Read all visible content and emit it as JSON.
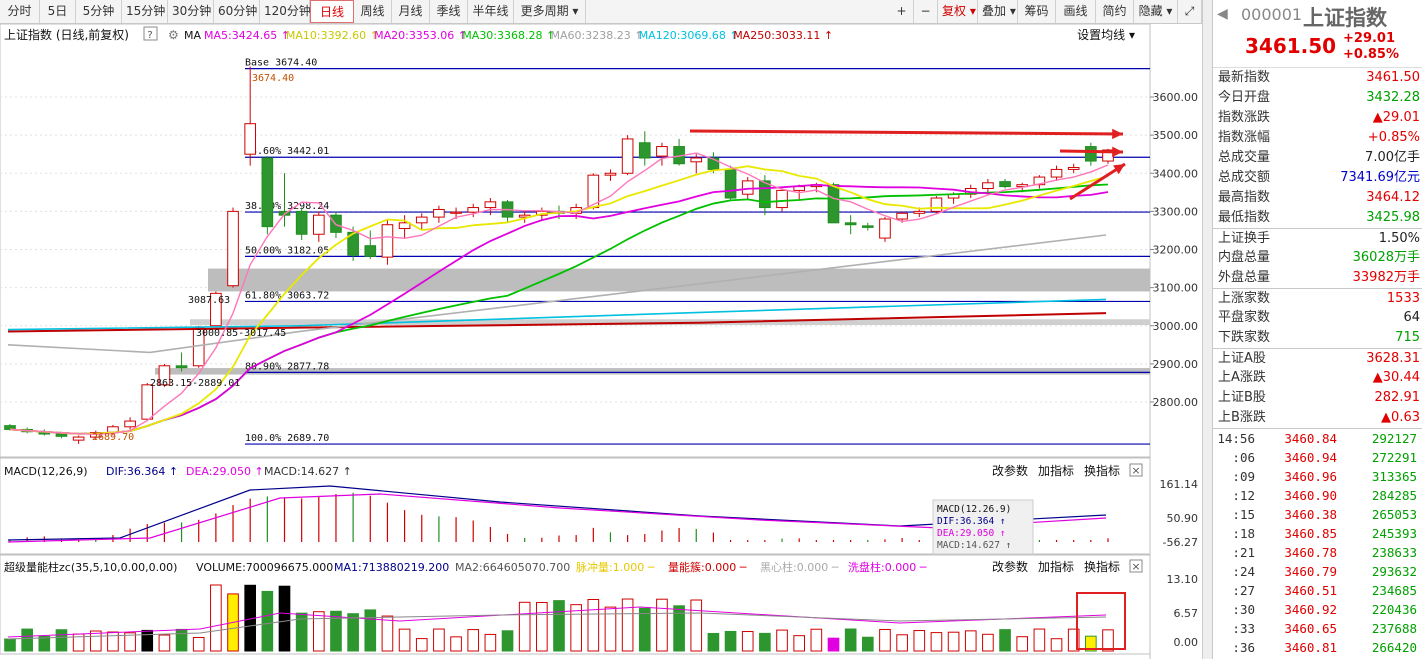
{
  "toolbar": {
    "periods": [
      "分时",
      "5日",
      "5分钟",
      "15分钟",
      "30分钟",
      "60分钟",
      "120分钟",
      "日线",
      "周线",
      "月线",
      "季线",
      "半年线",
      "更多周期 ▾"
    ],
    "active": "日线",
    "tools": [
      "+",
      "−",
      "复权 ▾",
      "叠加 ▾",
      "筹码",
      "画线",
      "简约",
      "隐藏 ▾"
    ]
  },
  "legend": {
    "title": "上证指数 (日线,前复权)",
    "ma": [
      {
        "label": "MA5:3424.65",
        "color": "#e000e0"
      },
      {
        "label": "MA10:3392.60",
        "color": "#e0e000"
      },
      {
        "label": "MA20:3353.06",
        "color": "#e000e0"
      },
      {
        "label": "MA30:3368.28",
        "color": "#00c000"
      },
      {
        "label": "MA60:3238.23",
        "color": "#a0a0a0"
      },
      {
        "label": "MA120:3069.68",
        "color": "#00c0e0"
      },
      {
        "label": "MA250:3033.11",
        "color": "#c00000"
      }
    ],
    "ma_label": "MA",
    "settings": "设置均线 ▾"
  },
  "price_axis": [
    "3600.00",
    "3500.00",
    "3400.00",
    "3300.00",
    "3200.00",
    "3100.00",
    "3000.00",
    "2900.00",
    "2800.00"
  ],
  "fib_labels": [
    "Base 3674.40",
    "23.60% 3442.01",
    "38.20% 3298.24",
    "50.00% 3182.05",
    "61.80% 3063.72",
    "80.90% 2877.78",
    "100.0% 2689.70"
  ],
  "price_notes": [
    "3674.40",
    "2689.70",
    "3087.63",
    "2863.15-2889.01",
    "3000.85-3017.45"
  ],
  "chart_data": {
    "type": "candlestick",
    "title": "上证指数 (日线,前复权)",
    "ylim": [
      2700,
      3710
    ],
    "candles": [
      [
        2738,
        2742,
        2725,
        2728
      ],
      [
        2728,
        2733,
        2718,
        2722
      ],
      [
        2722,
        2728,
        2712,
        2716
      ],
      [
        2716,
        2722,
        2705,
        2710
      ],
      [
        2700,
        2712,
        2690,
        2708
      ],
      [
        2708,
        2725,
        2702,
        2720
      ],
      [
        2720,
        2740,
        2712,
        2735
      ],
      [
        2735,
        2760,
        2728,
        2750
      ],
      [
        2755,
        2850,
        2750,
        2845
      ],
      [
        2845,
        2900,
        2840,
        2895
      ],
      [
        2895,
        2930,
        2880,
        2890
      ],
      [
        2895,
        3000,
        2890,
        2995
      ],
      [
        3000,
        3090,
        2995,
        3085
      ],
      [
        3105,
        3310,
        3100,
        3300
      ],
      [
        3450,
        3680,
        3420,
        3530
      ],
      [
        3440,
        3445,
        3240,
        3260
      ],
      [
        3300,
        3400,
        3260,
        3290
      ],
      [
        3300,
        3310,
        3225,
        3240
      ],
      [
        3240,
        3300,
        3220,
        3290
      ],
      [
        3290,
        3300,
        3230,
        3245
      ],
      [
        3245,
        3260,
        3170,
        3185
      ],
      [
        3210,
        3250,
        3175,
        3182
      ],
      [
        3180,
        3280,
        3160,
        3265
      ],
      [
        3255,
        3290,
        3230,
        3270
      ],
      [
        3270,
        3295,
        3250,
        3285
      ],
      [
        3285,
        3315,
        3270,
        3305
      ],
      [
        3295,
        3310,
        3280,
        3298
      ],
      [
        3298,
        3320,
        3285,
        3310
      ],
      [
        3310,
        3335,
        3290,
        3325
      ],
      [
        3325,
        3330,
        3270,
        3285
      ],
      [
        3285,
        3300,
        3270,
        3290
      ],
      [
        3290,
        3310,
        3275,
        3300
      ],
      [
        3300,
        3315,
        3280,
        3295
      ],
      [
        3295,
        3320,
        3280,
        3310
      ],
      [
        3310,
        3400,
        3305,
        3395
      ],
      [
        3395,
        3410,
        3380,
        3400
      ],
      [
        3400,
        3500,
        3395,
        3490
      ],
      [
        3480,
        3510,
        3420,
        3440
      ],
      [
        3445,
        3480,
        3420,
        3470
      ],
      [
        3470,
        3490,
        3420,
        3425
      ],
      [
        3430,
        3450,
        3400,
        3440
      ],
      [
        3440,
        3455,
        3400,
        3410
      ],
      [
        3410,
        3420,
        3330,
        3335
      ],
      [
        3345,
        3390,
        3330,
        3380
      ],
      [
        3380,
        3395,
        3290,
        3310
      ],
      [
        3310,
        3360,
        3300,
        3355
      ],
      [
        3355,
        3370,
        3330,
        3365
      ],
      [
        3365,
        3375,
        3350,
        3370
      ],
      [
        3370,
        3375,
        3270,
        3270
      ],
      [
        3270,
        3290,
        3240,
        3265
      ],
      [
        3262,
        3270,
        3250,
        3258
      ],
      [
        3230,
        3285,
        3220,
        3280
      ],
      [
        3280,
        3300,
        3270,
        3295
      ],
      [
        3295,
        3310,
        3285,
        3300
      ],
      [
        3300,
        3340,
        3295,
        3335
      ],
      [
        3335,
        3350,
        3320,
        3345
      ],
      [
        3345,
        3370,
        3335,
        3360
      ],
      [
        3360,
        3385,
        3345,
        3375
      ],
      [
        3378,
        3385,
        3360,
        3365
      ],
      [
        3365,
        3375,
        3350,
        3370
      ],
      [
        3370,
        3395,
        3360,
        3390
      ],
      [
        3390,
        3420,
        3380,
        3410
      ],
      [
        3410,
        3425,
        3400,
        3415
      ],
      [
        3470,
        3480,
        3420,
        3432
      ],
      [
        3432,
        3464,
        3425,
        3461
      ]
    ]
  },
  "macd": {
    "title": "MACD(12,26,9)",
    "dif": "DIF:36.364",
    "dea": "DEA:29.050",
    "macd": "MACD:14.627",
    "axis": [
      "161.14",
      "50.90",
      "-56.27"
    ],
    "box": [
      "MACD(12.26.9)",
      "DIF:36.364",
      "DEA:29.050",
      "MACD:14.627"
    ],
    "buttons": [
      "改参数",
      "加指标",
      "换指标"
    ]
  },
  "volume": {
    "title": "超级量能柱zc(35,5,10,0.00,0.00)",
    "vol": "VOLUME:700096675.000",
    "ma1": "MA1:713880219.200",
    "ma2": "MA2:664605070.700",
    "extra": [
      "脉冲量:1.000 ─",
      "量能簇:0.000 ─",
      "黑心柱:0.000 ─",
      "洗盘柱:0.000 ─"
    ],
    "axis": [
      "13.10",
      "6.57",
      "0.00"
    ],
    "buttons": [
      "改参数",
      "加指标",
      "换指标"
    ]
  },
  "quote": {
    "code": "000001",
    "name": "上证指数",
    "price": "3461.50",
    "change": "+29.01",
    "pct": "+0.85%",
    "rows1": [
      {
        "l": "最新指数",
        "v": "3461.50",
        "c": "red"
      },
      {
        "l": "今日开盘",
        "v": "3432.28",
        "c": "green"
      },
      {
        "l": "指数涨跌",
        "v": "▲29.01",
        "c": "red"
      },
      {
        "l": "指数涨幅",
        "v": "+0.85%",
        "c": "red"
      },
      {
        "l": "总成交量",
        "v": "7.00亿手",
        "c": ""
      },
      {
        "l": "总成交额",
        "v": "7341.69亿元",
        "c": "blue"
      },
      {
        "l": "最高指数",
        "v": "3464.12",
        "c": "red"
      },
      {
        "l": "最低指数",
        "v": "3425.98",
        "c": "green"
      }
    ],
    "rows2": [
      {
        "l": "上证换手",
        "v": "1.50%",
        "c": ""
      },
      {
        "l": "内盘总量",
        "v": "36028万手",
        "c": "green"
      },
      {
        "l": "外盘总量",
        "v": "33982万手",
        "c": "red"
      }
    ],
    "rows3": [
      {
        "l": "上涨家数",
        "v": "1533",
        "c": "red"
      },
      {
        "l": "平盘家数",
        "v": "64",
        "c": ""
      },
      {
        "l": "下跌家数",
        "v": "715",
        "c": "green"
      }
    ],
    "rows4": [
      {
        "l": "上证A股",
        "v": "3628.31",
        "c": "red"
      },
      {
        "l": "上A涨跌",
        "v": "▲30.44",
        "c": "red"
      },
      {
        "l": "上证B股",
        "v": "282.91",
        "c": "red"
      },
      {
        "l": "上B涨跌",
        "v": "▲0.63",
        "c": "red"
      }
    ],
    "ticks": [
      [
        "14:56",
        "3460.84",
        "292127"
      ],
      [
        ":06",
        "3460.94",
        "272291"
      ],
      [
        ":09",
        "3460.96",
        "313365"
      ],
      [
        ":12",
        "3460.90",
        "284285"
      ],
      [
        ":15",
        "3460.38",
        "265053"
      ],
      [
        ":18",
        "3460.85",
        "245393"
      ],
      [
        ":21",
        "3460.78",
        "238633"
      ],
      [
        ":24",
        "3460.79",
        "293632"
      ],
      [
        ":27",
        "3460.51",
        "234685"
      ],
      [
        ":30",
        "3460.92",
        "220436"
      ],
      [
        ":33",
        "3460.65",
        "237688"
      ],
      [
        ":36",
        "3460.81",
        "266420"
      ]
    ]
  }
}
